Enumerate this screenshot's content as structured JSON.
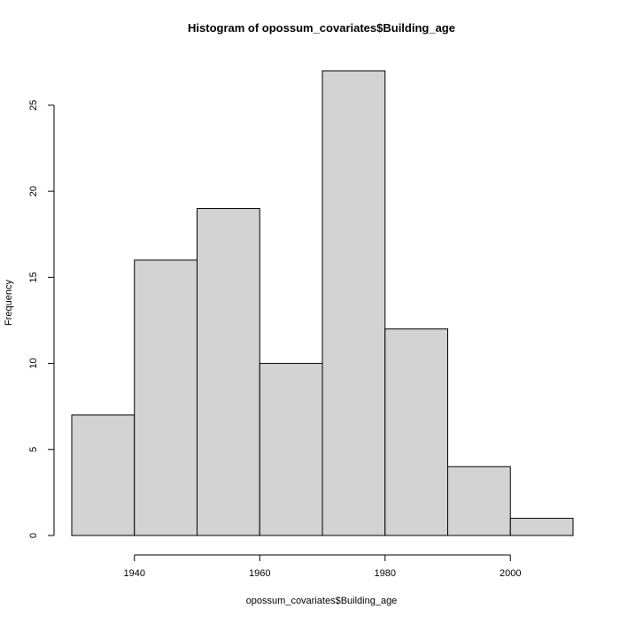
{
  "chart_data": {
    "type": "bar",
    "subtype": "histogram",
    "title": "Histogram of opossum_covariates$Building_age",
    "xlabel": "opossum_covariates$Building_age",
    "ylabel": "Frequency",
    "bins": [
      {
        "start": 1930,
        "end": 1940,
        "count": 7
      },
      {
        "start": 1940,
        "end": 1950,
        "count": 16
      },
      {
        "start": 1950,
        "end": 1960,
        "count": 19
      },
      {
        "start": 1960,
        "end": 1970,
        "count": 10
      },
      {
        "start": 1970,
        "end": 1980,
        "count": 27
      },
      {
        "start": 1980,
        "end": 1990,
        "count": 12
      },
      {
        "start": 1990,
        "end": 2000,
        "count": 4
      },
      {
        "start": 2000,
        "end": 2010,
        "count": 1
      }
    ],
    "xlim": [
      1930,
      2010
    ],
    "ylim": [
      0,
      27
    ],
    "x_ticks": [
      1940,
      1960,
      1980,
      2000
    ],
    "x_tick_labels": [
      "1940",
      "1960",
      "1980",
      "2000"
    ],
    "y_ticks": [
      0,
      5,
      10,
      15,
      20,
      25
    ],
    "y_tick_labels": [
      "0",
      "5",
      "10",
      "15",
      "20",
      "25"
    ],
    "bar_fill": "#d3d3d3",
    "bar_stroke": "#000000",
    "grid": false,
    "legend": "none"
  }
}
